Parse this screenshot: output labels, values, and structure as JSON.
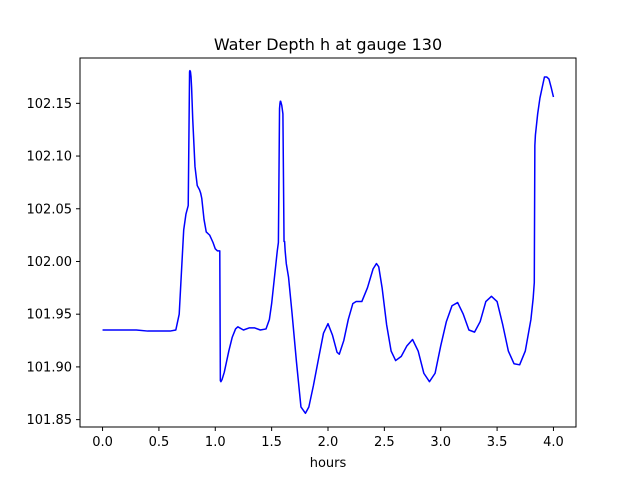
{
  "chart_data": {
    "type": "line",
    "title": "Water Depth h at gauge 130",
    "xlabel": "hours",
    "ylabel": "",
    "xlim": [
      -0.2,
      4.2
    ],
    "ylim": [
      101.843,
      102.193
    ],
    "xticks": [
      0.0,
      0.5,
      1.0,
      1.5,
      2.0,
      2.5,
      3.0,
      3.5,
      4.0
    ],
    "xtick_labels": [
      "0.0",
      "0.5",
      "1.0",
      "1.5",
      "2.0",
      "2.5",
      "3.0",
      "3.5",
      "4.0"
    ],
    "yticks": [
      101.85,
      101.9,
      101.95,
      102.0,
      102.05,
      102.1,
      102.15
    ],
    "ytick_labels": [
      "101.85",
      "101.90",
      "101.95",
      "102.00",
      "102.05",
      "102.10",
      "102.15"
    ],
    "grid": false,
    "series": [
      {
        "color": "#0000ff",
        "x": [
          0.0,
          0.2,
          0.3,
          0.4,
          0.5,
          0.6,
          0.65,
          0.68,
          0.7,
          0.72,
          0.74,
          0.76,
          0.772,
          0.775,
          0.78,
          0.785,
          0.79,
          0.8,
          0.82,
          0.84,
          0.86,
          0.87,
          0.88,
          0.9,
          0.92,
          0.95,
          0.98,
          1.0,
          1.02,
          1.04,
          1.045,
          1.05,
          1.06,
          1.08,
          1.1,
          1.12,
          1.15,
          1.18,
          1.2,
          1.25,
          1.3,
          1.35,
          1.4,
          1.45,
          1.48,
          1.5,
          1.53,
          1.55,
          1.56,
          1.57,
          1.574,
          1.577,
          1.58,
          1.59,
          1.6,
          1.61,
          1.615,
          1.62,
          1.63,
          1.65,
          1.68,
          1.72,
          1.76,
          1.8,
          1.83,
          1.87,
          1.92,
          1.96,
          2.0,
          2.04,
          2.08,
          2.1,
          2.14,
          2.18,
          2.22,
          2.25,
          2.3,
          2.35,
          2.4,
          2.43,
          2.45,
          2.48,
          2.52,
          2.56,
          2.6,
          2.65,
          2.7,
          2.75,
          2.8,
          2.85,
          2.9,
          2.95,
          3.0,
          3.05,
          3.1,
          3.15,
          3.2,
          3.25,
          3.3,
          3.35,
          3.4,
          3.45,
          3.5,
          3.55,
          3.6,
          3.65,
          3.7,
          3.75,
          3.8,
          3.82,
          3.83,
          3.835,
          3.84,
          3.86,
          3.88,
          3.9,
          3.92,
          3.94,
          3.96,
          3.98,
          4.0
        ],
        "y": [
          101.935,
          101.935,
          101.935,
          101.934,
          101.934,
          101.934,
          101.935,
          101.95,
          101.99,
          102.03,
          102.045,
          102.053,
          102.18,
          102.181,
          102.18,
          102.175,
          102.165,
          102.135,
          102.09,
          102.072,
          102.068,
          102.065,
          102.06,
          102.04,
          102.028,
          102.025,
          102.018,
          102.012,
          102.01,
          102.01,
          101.887,
          101.886,
          101.888,
          101.895,
          101.905,
          101.915,
          101.928,
          101.936,
          101.938,
          101.935,
          101.937,
          101.937,
          101.935,
          101.936,
          101.945,
          101.96,
          101.99,
          102.01,
          102.018,
          102.145,
          102.15,
          102.152,
          102.152,
          102.148,
          102.14,
          102.019,
          102.019,
          102.01,
          101.998,
          101.985,
          101.952,
          101.905,
          101.862,
          101.856,
          101.862,
          101.882,
          101.91,
          101.932,
          101.941,
          101.93,
          101.914,
          101.912,
          101.925,
          101.945,
          101.96,
          101.962,
          101.962,
          101.975,
          101.993,
          101.998,
          101.995,
          101.975,
          101.94,
          101.915,
          101.906,
          101.91,
          101.92,
          101.926,
          101.915,
          101.894,
          101.886,
          101.894,
          101.92,
          101.943,
          101.958,
          101.961,
          101.95,
          101.935,
          101.933,
          101.943,
          101.962,
          101.967,
          101.962,
          101.94,
          101.915,
          101.903,
          101.902,
          101.915,
          101.945,
          101.965,
          101.98,
          102.11,
          102.12,
          102.14,
          102.155,
          102.165,
          102.175,
          102.175,
          102.173,
          102.165,
          102.156
        ]
      }
    ]
  }
}
